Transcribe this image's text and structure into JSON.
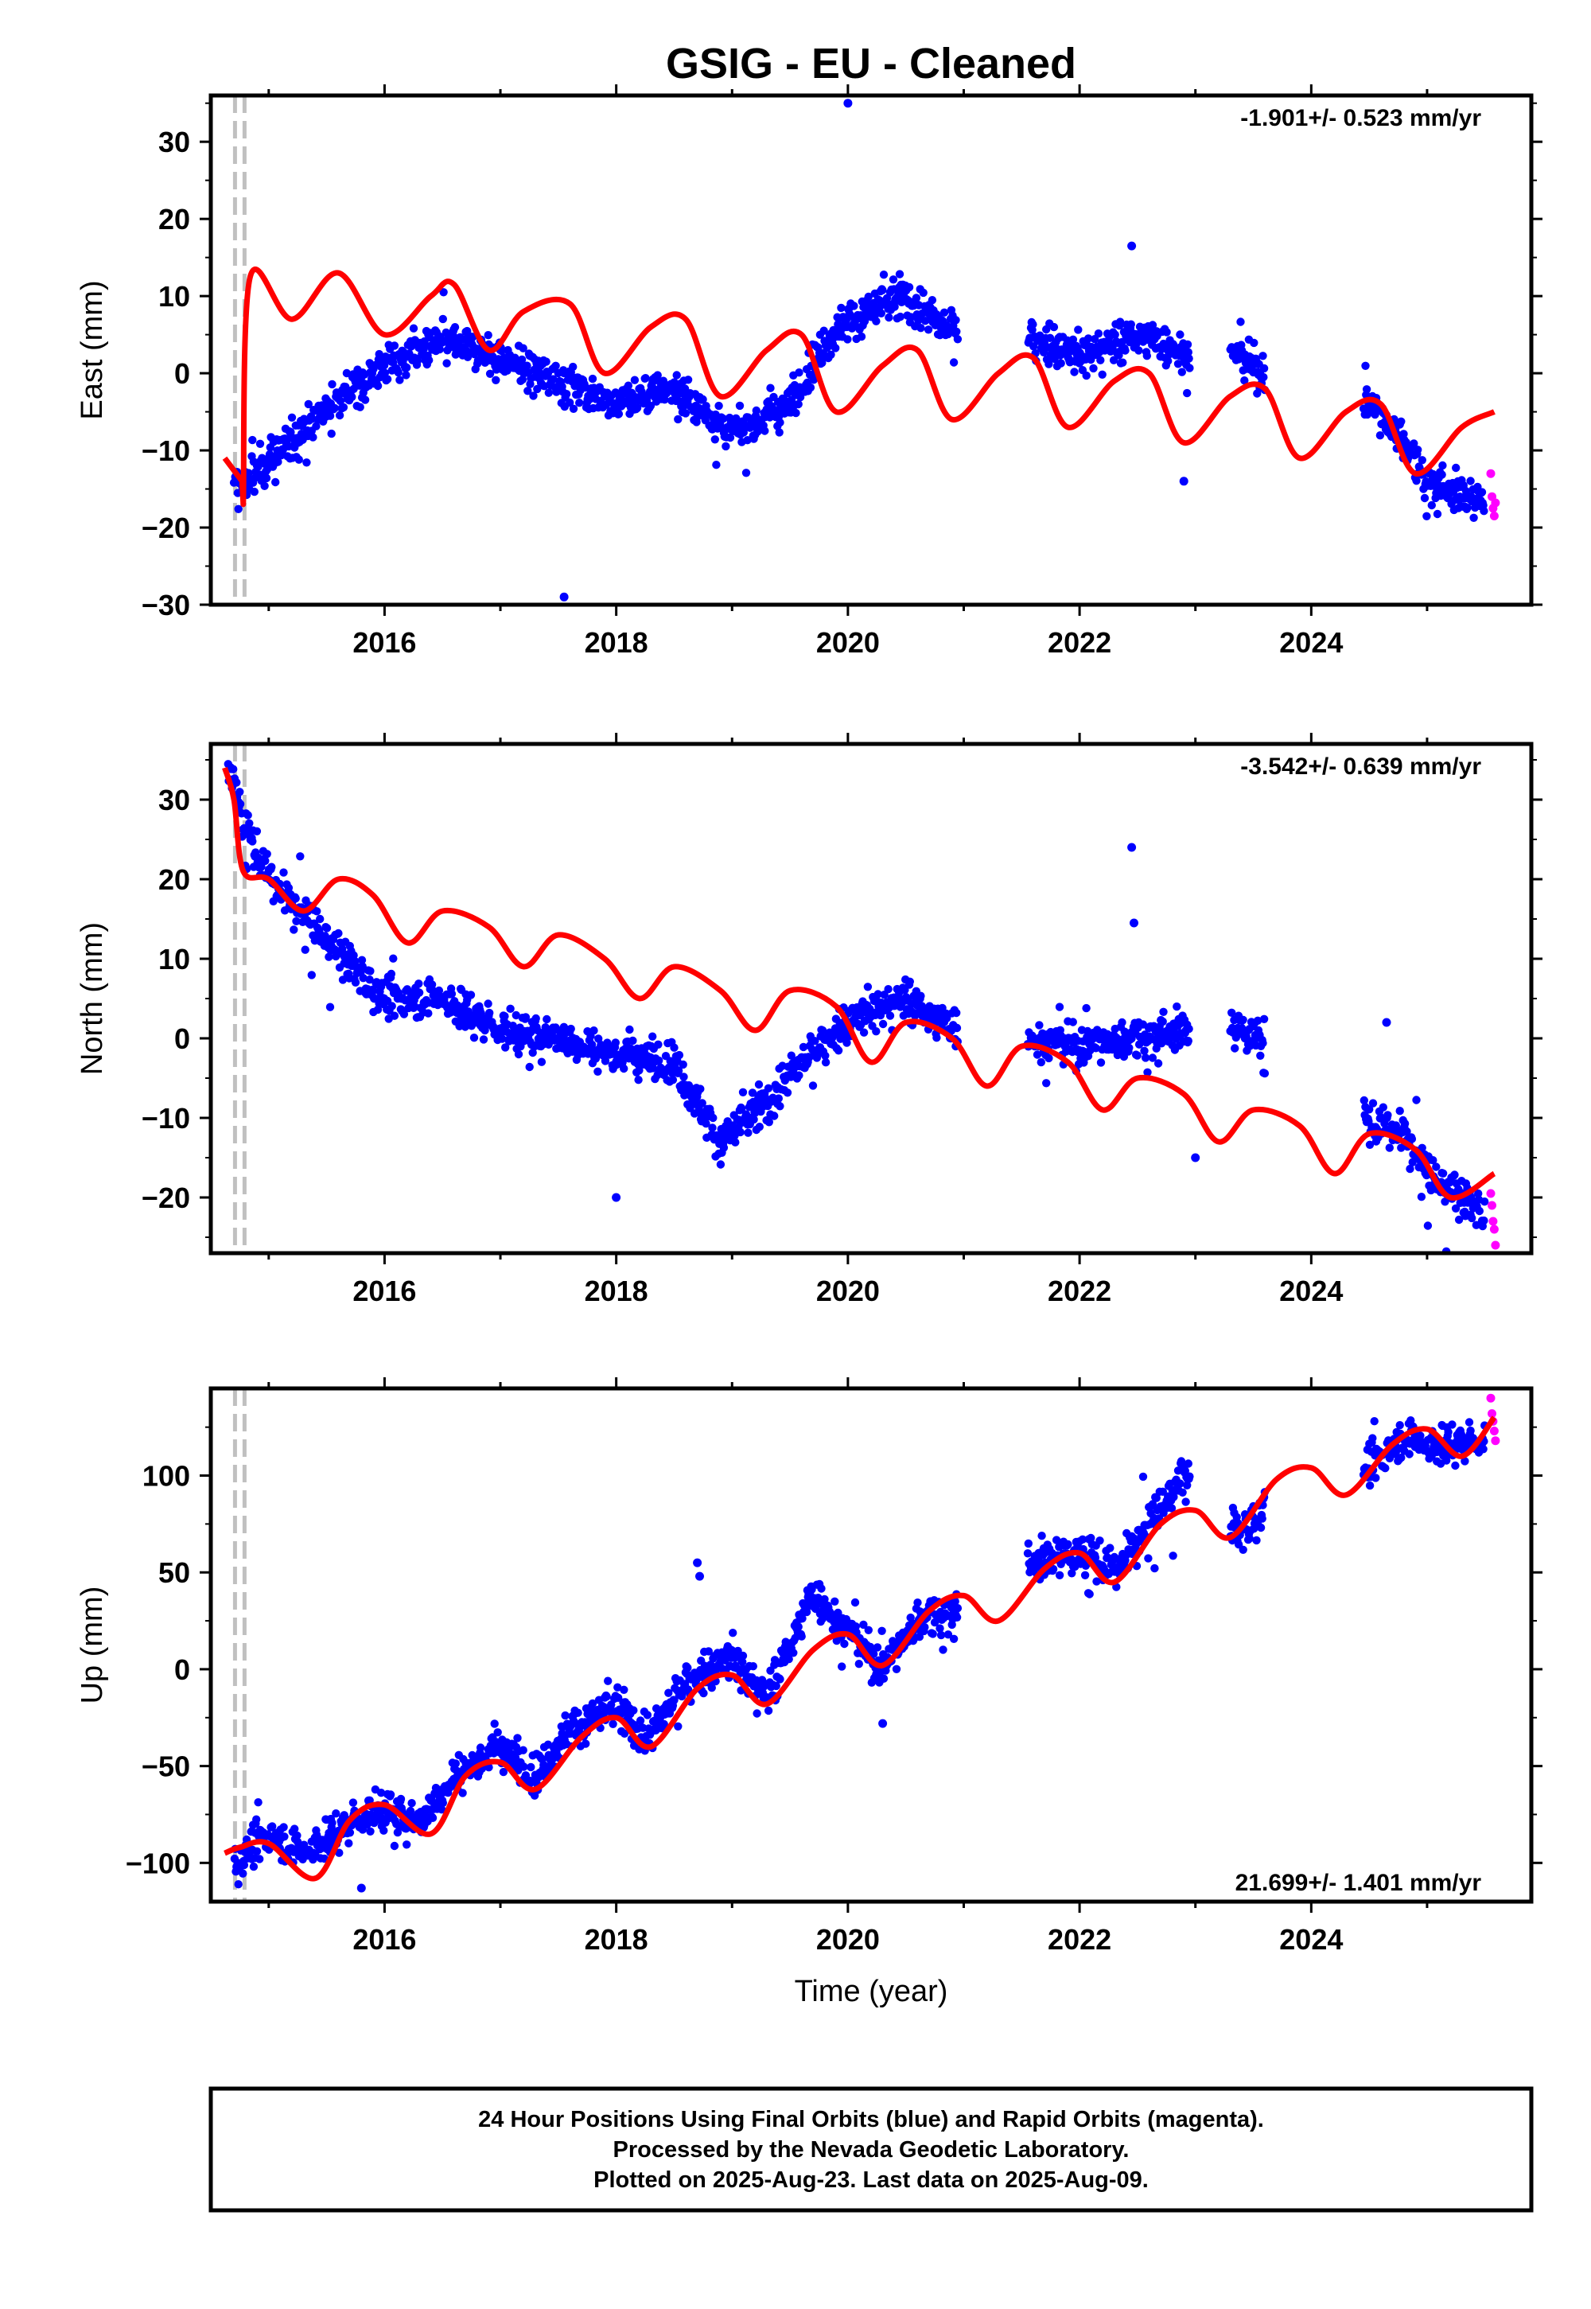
{
  "title": "GSIG  - EU - Cleaned",
  "x_axis_label": "Time (year)",
  "caption": [
    "24 Hour Positions Using Final Orbits (blue) and Rapid Orbits (magenta).",
    "Processed by the Nevada Geodetic Laboratory.",
    "Plotted on 2025-Aug-23. Last data on 2025-Aug-09."
  ],
  "colors": {
    "final_orbits": "#0000ff",
    "rapid_orbits": "#ff00ff",
    "model": "#ff0000",
    "marker_line": "#c0c0c0"
  },
  "chart_data": [
    {
      "type": "scatter",
      "ylabel": "East (mm)",
      "rate_text": "-1.901+/- 0.523 mm/yr",
      "rate_position": "top-right",
      "xlim": [
        2014.5,
        2025.9
      ],
      "ylim": [
        -30,
        36
      ],
      "xticks": [
        2016,
        2018,
        2020,
        2022,
        2024
      ],
      "yticks": [
        -30,
        -20,
        -10,
        0,
        10,
        20,
        30
      ],
      "grid": false,
      "equipment_change_epoch": 2014.75,
      "final_orbit_daily_trend": {
        "x": [
          2014.7,
          2014.9,
          2015.3,
          2015.7,
          2016.0,
          2016.5,
          2017.0,
          2017.5,
          2018.0,
          2018.5,
          2019.0,
          2019.5,
          2019.8,
          2020.0,
          2020.5,
          2020.8,
          2021.6,
          2022.0,
          2022.5,
          2022.9,
          2023.4,
          2023.6,
          2024.5,
          2024.8,
          2025.0,
          2025.5
        ],
        "y": [
          -15,
          -13,
          -7,
          -2,
          1,
          4,
          2,
          -1,
          -4,
          -2,
          -8,
          -4,
          4,
          7,
          10,
          6,
          5,
          2,
          5,
          3,
          2,
          0,
          -4,
          -9,
          -14,
          -17
        ]
      },
      "final_orbit_gaps": [
        [
          2020.95,
          2021.55
        ],
        [
          2022.95,
          2023.3
        ],
        [
          2023.6,
          2024.45
        ]
      ],
      "final_orbit_outliers": {
        "x": [
          2020.0,
          2017.55,
          2022.45,
          2022.9
        ],
        "y": [
          35,
          -29,
          16.5,
          -14
        ]
      },
      "rapid_orbits": {
        "x": [
          2025.55,
          2025.56,
          2025.57,
          2025.58,
          2025.59
        ],
        "y": [
          -13,
          -16,
          -17.5,
          -18.5,
          -16.8
        ]
      },
      "model_fit": {
        "offset_epoch": 2014.78,
        "pre_offset": {
          "x": [
            2014.62,
            2014.77
          ],
          "y": [
            -11,
            -14
          ]
        },
        "post_offset": {
          "x": [
            2014.78,
            2014.84,
            2015.2,
            2015.6,
            2016.0,
            2016.4,
            2016.6,
            2016.9,
            2017.2,
            2017.6,
            2017.9,
            2018.3,
            2018.6,
            2018.9,
            2019.3,
            2019.6,
            2019.9,
            2020.3,
            2020.6,
            2020.9,
            2021.3,
            2021.6,
            2021.9,
            2022.3,
            2022.6,
            2022.9,
            2023.3,
            2023.6,
            2023.9,
            2024.3,
            2024.6,
            2024.9,
            2025.3,
            2025.58
          ],
          "y": [
            -17,
            12.5,
            7,
            13,
            5,
            10,
            11.5,
            3,
            8,
            9,
            0,
            6,
            7,
            -3,
            3,
            5,
            -5,
            1,
            3,
            -6,
            0,
            2,
            -7,
            -1,
            0,
            -9,
            -3,
            -2,
            -11,
            -5,
            -4,
            -13,
            -7,
            -5
          ]
        }
      }
    },
    {
      "type": "scatter",
      "ylabel": "North (mm)",
      "rate_text": "-3.542+/- 0.639 mm/yr",
      "rate_position": "top-right",
      "xlim": [
        2014.5,
        2025.9
      ],
      "ylim": [
        -27,
        37
      ],
      "xticks": [
        2016,
        2018,
        2020,
        2022,
        2024
      ],
      "yticks": [
        -20,
        -10,
        0,
        10,
        20,
        30
      ],
      "grid": false,
      "equipment_change_epoch": 2014.75,
      "final_orbit_daily_trend": {
        "x": [
          2014.65,
          2014.8,
          2015.0,
          2015.4,
          2015.8,
          2016.0,
          2016.5,
          2017.0,
          2017.5,
          2018.0,
          2018.5,
          2018.9,
          2019.3,
          2019.8,
          2020.0,
          2020.5,
          2020.8,
          2021.6,
          2022.0,
          2022.5,
          2022.9,
          2023.4,
          2023.6,
          2024.5,
          2024.8,
          2025.0,
          2025.5
        ],
        "y": [
          35,
          26,
          20,
          14,
          8,
          5,
          5,
          1,
          0,
          -2,
          -3,
          -13,
          -8,
          0,
          2,
          5,
          2,
          0,
          -1,
          0,
          1,
          1,
          0,
          -11,
          -12,
          -17,
          -22
        ]
      },
      "final_orbit_gaps": [
        [
          2020.95,
          2021.55
        ],
        [
          2022.95,
          2023.3
        ],
        [
          2023.6,
          2024.45
        ]
      ],
      "final_orbit_outliers": {
        "x": [
          2022.45,
          2022.47,
          2024.65,
          2018.0,
          2023.0
        ],
        "y": [
          24,
          14.5,
          2,
          -20,
          -15
        ]
      },
      "rapid_orbits": {
        "x": [
          2025.55,
          2025.56,
          2025.57,
          2025.58,
          2025.59
        ],
        "y": [
          -19.5,
          -21,
          -23,
          -24,
          -26
        ]
      },
      "model_fit": {
        "x": [
          2014.62,
          2014.7,
          2014.78,
          2015.0,
          2015.3,
          2015.6,
          2015.9,
          2016.2,
          2016.5,
          2016.9,
          2017.2,
          2017.5,
          2017.9,
          2018.2,
          2018.5,
          2018.9,
          2019.2,
          2019.5,
          2019.9,
          2020.2,
          2020.5,
          2020.9,
          2021.2,
          2021.5,
          2021.9,
          2022.2,
          2022.5,
          2022.9,
          2023.2,
          2023.5,
          2023.9,
          2024.2,
          2024.5,
          2024.9,
          2025.2,
          2025.58
        ],
        "y": [
          34,
          30,
          21,
          20,
          16,
          20,
          18,
          12,
          16,
          14,
          9,
          13,
          10,
          5,
          9,
          6,
          1,
          6,
          4,
          -3,
          2,
          0,
          -6,
          -1,
          -3,
          -9,
          -5,
          -7,
          -13,
          -9,
          -11,
          -17,
          -12,
          -14,
          -20,
          -17
        ]
      }
    },
    {
      "type": "scatter",
      "ylabel": "Up (mm)",
      "rate_text": "21.699+/- 1.401 mm/yr",
      "rate_position": "bottom-right",
      "xlim": [
        2014.5,
        2025.9
      ],
      "ylim": [
        -120,
        145
      ],
      "xticks": [
        2016,
        2018,
        2020,
        2022,
        2024
      ],
      "yticks": [
        -100,
        -50,
        0,
        50,
        100
      ],
      "grid": false,
      "equipment_change_epoch": 2014.75,
      "final_orbit_daily_trend": {
        "x": [
          2014.7,
          2015.0,
          2015.3,
          2015.7,
          2016.0,
          2016.3,
          2016.6,
          2017.0,
          2017.3,
          2017.6,
          2018.0,
          2018.3,
          2018.6,
          2019.0,
          2019.3,
          2019.7,
          2020.0,
          2020.3,
          2020.6,
          2020.9,
          2021.6,
          2022.0,
          2022.3,
          2022.6,
          2022.9,
          2023.4,
          2023.6,
          2024.5,
          2024.8,
          2025.0,
          2025.5
        ],
        "y": [
          -100,
          -85,
          -95,
          -80,
          -72,
          -80,
          -55,
          -40,
          -55,
          -30,
          -20,
          -35,
          -5,
          5,
          -15,
          40,
          20,
          0,
          25,
          30,
          55,
          60,
          50,
          75,
          100,
          70,
          85,
          105,
          120,
          115,
          118
        ]
      },
      "final_orbit_gaps": [
        [
          2020.95,
          2021.55
        ],
        [
          2022.95,
          2023.3
        ],
        [
          2023.6,
          2024.45
        ]
      ],
      "final_orbit_outliers": {
        "x": [
          2018.7,
          2018.72,
          2020.3,
          2015.8
        ],
        "y": [
          55,
          48,
          -28,
          -113
        ]
      },
      "rapid_orbits": {
        "x": [
          2025.55,
          2025.56,
          2025.57,
          2025.58,
          2025.59
        ],
        "y": [
          140,
          132,
          128,
          123,
          118
        ]
      },
      "model_fit": {
        "x": [
          2014.62,
          2014.75,
          2015.0,
          2015.4,
          2015.7,
          2016.0,
          2016.4,
          2016.7,
          2017.0,
          2017.3,
          2017.7,
          2018.0,
          2018.3,
          2018.7,
          2019.0,
          2019.3,
          2019.7,
          2020.0,
          2020.3,
          2020.7,
          2021.0,
          2021.3,
          2021.7,
          2022.0,
          2022.3,
          2022.7,
          2023.0,
          2023.3,
          2023.7,
          2024.0,
          2024.3,
          2024.7,
          2025.0,
          2025.3,
          2025.58
        ],
        "y": [
          -95,
          -92,
          -90,
          -108,
          -78,
          -70,
          -85,
          -55,
          -48,
          -62,
          -35,
          -25,
          -40,
          -10,
          -3,
          -18,
          10,
          18,
          2,
          30,
          38,
          25,
          52,
          60,
          45,
          75,
          82,
          68,
          98,
          104,
          90,
          116,
          124,
          110,
          130
        ]
      }
    }
  ]
}
